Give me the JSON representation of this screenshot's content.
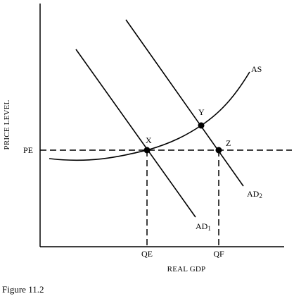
{
  "figure": {
    "caption": "Figure 11.2",
    "axes": {
      "y_title": "PRICE LEVEL",
      "x_title": "REAL GDP"
    },
    "ticks": {
      "pe": "PE",
      "qe": "QE",
      "qf": "QF"
    },
    "points": {
      "x": "X",
      "y": "Y",
      "z": "Z"
    },
    "curves": {
      "as": "AS",
      "ad1_main": "AD",
      "ad1_sub": "1",
      "ad2_main": "AD",
      "ad2_sub": "2"
    },
    "colors": {
      "ink": "#000000",
      "background": "#ffffff"
    }
  }
}
